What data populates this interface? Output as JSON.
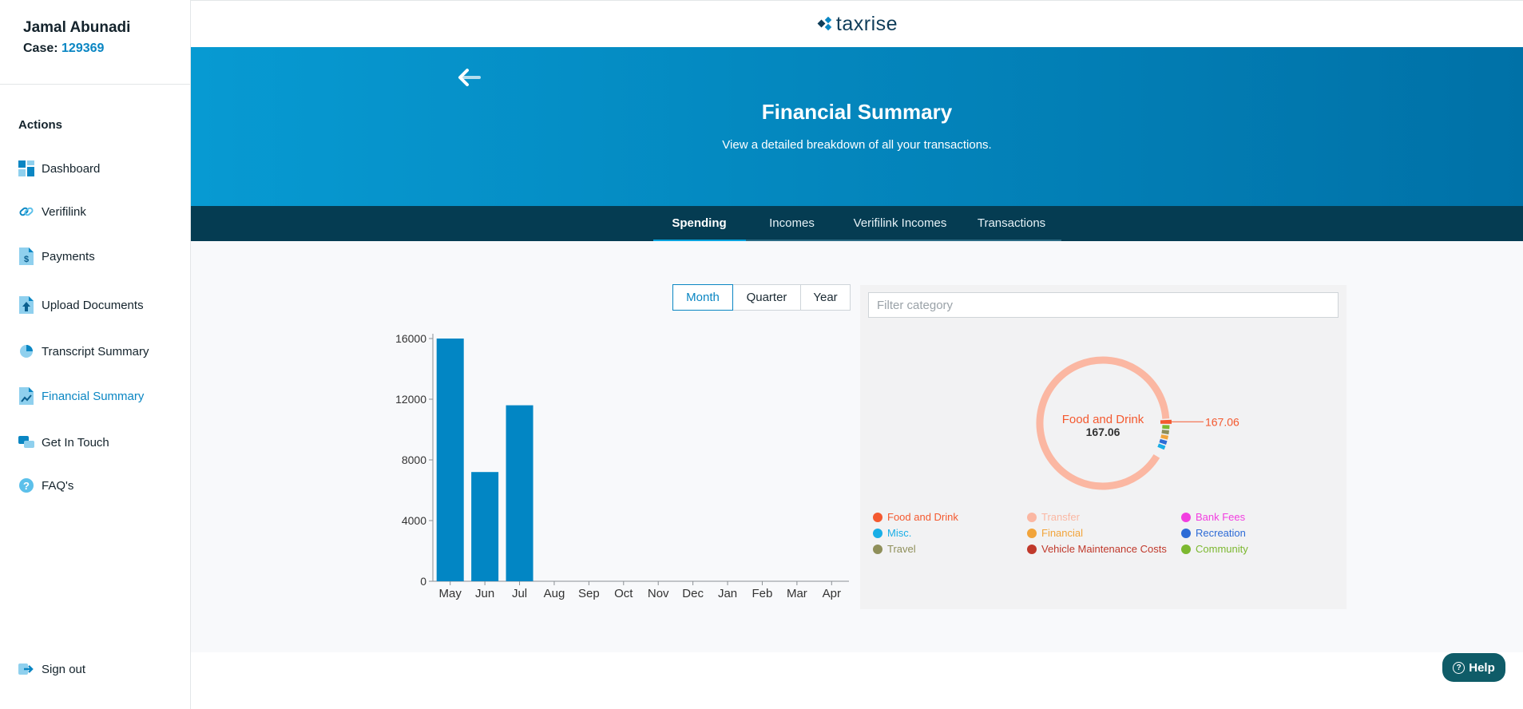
{
  "user": {
    "name": "Jamal Abunadi",
    "case_label": "Case:",
    "case_number": "129369"
  },
  "sidebar": {
    "actions_title": "Actions",
    "items": [
      {
        "label": "Dashboard",
        "icon": "dashboard-icon"
      },
      {
        "label": "Verifilink",
        "icon": "link-icon"
      },
      {
        "label": "Payments",
        "icon": "dollar-document-icon"
      },
      {
        "label": "Upload Documents",
        "icon": "upload-document-icon"
      },
      {
        "label": "Transcript Summary",
        "icon": "pie-chart-icon"
      },
      {
        "label": "Financial Summary",
        "icon": "chart-document-icon",
        "active": true
      },
      {
        "label": "Get In Touch",
        "icon": "chat-icon"
      },
      {
        "label": "FAQ's",
        "icon": "question-icon"
      }
    ],
    "sign_out": "Sign out"
  },
  "header": {
    "logo_text": "taxrise"
  },
  "hero": {
    "title": "Financial Summary",
    "subtitle": "View a detailed breakdown of all your transactions."
  },
  "tabs": [
    {
      "label": "Spending",
      "active": true
    },
    {
      "label": "Incomes"
    },
    {
      "label": "Verifilink Incomes"
    },
    {
      "label": "Transactions"
    }
  ],
  "period_toggle": {
    "options": [
      "Month",
      "Quarter",
      "Year"
    ],
    "selected": "Month"
  },
  "filter": {
    "placeholder": "Filter category",
    "value": ""
  },
  "help": {
    "label": "Help"
  },
  "colors": {
    "accent": "#0a86c3",
    "hero_start": "#079ad2",
    "hero_end": "#0071a7",
    "tabs_bg": "#053c52",
    "bar": "#0286c4"
  },
  "chart_data": [
    {
      "type": "bar",
      "categories": [
        "May",
        "Jun",
        "Jul",
        "Aug",
        "Sep",
        "Oct",
        "Nov",
        "Dec",
        "Jan",
        "Feb",
        "Mar",
        "Apr"
      ],
      "values": [
        16000,
        7200,
        11600,
        0,
        0,
        0,
        0,
        0,
        0,
        0,
        0,
        0
      ],
      "yticks": [
        0,
        4000,
        8000,
        12000,
        16000
      ],
      "ylim": [
        0,
        16000
      ],
      "title": "",
      "xlabel": "",
      "ylabel": "",
      "grid": false
    },
    {
      "type": "pie",
      "center_label": "Food and Drink",
      "center_value": "167.06",
      "callout_label": "167.06",
      "slices": [
        {
          "name": "Transfer",
          "value": 35100,
          "color": "#fbb7a2"
        },
        {
          "name": "Food and Drink",
          "value": 167.06,
          "color": "#f4592f"
        },
        {
          "name": "Community",
          "value": 320,
          "color": "#7cb82f"
        },
        {
          "name": "Travel",
          "value": 60,
          "color": "#8f8f5a"
        },
        {
          "name": "Financial",
          "value": 40,
          "color": "#f2a43a"
        },
        {
          "name": "Recreation",
          "value": 60,
          "color": "#2d6bd6"
        },
        {
          "name": "Misc.",
          "value": 210,
          "color": "#18aee6"
        }
      ],
      "legend": [
        {
          "name": "Food and Drink",
          "color": "#f4592f"
        },
        {
          "name": "Transfer",
          "color": "#fbb7a2"
        },
        {
          "name": "Bank Fees",
          "color": "#f23ee0"
        },
        {
          "name": "Misc.",
          "color": "#18aee6"
        },
        {
          "name": "Financial",
          "color": "#f2a43a"
        },
        {
          "name": "Recreation",
          "color": "#2d6bd6"
        },
        {
          "name": "Travel",
          "color": "#8f8f5a"
        },
        {
          "name": "Vehicle Maintenance Costs",
          "color": "#c0392b"
        },
        {
          "name": "Community",
          "color": "#7cb82f"
        }
      ],
      "legend_position": "bottom"
    }
  ]
}
